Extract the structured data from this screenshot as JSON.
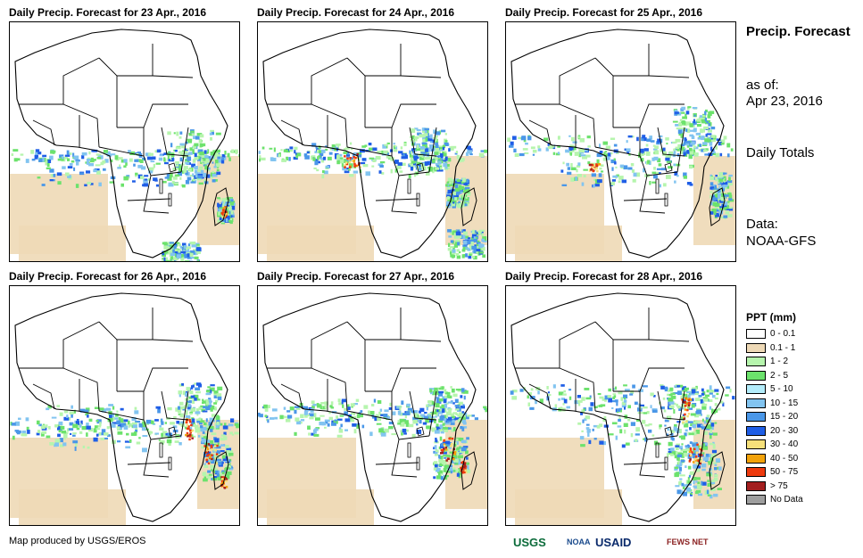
{
  "panels": [
    {
      "title": "Daily Precip. Forecast for 23 Apr., 2016"
    },
    {
      "title": "Daily Precip. Forecast for 24 Apr., 2016"
    },
    {
      "title": "Daily Precip. Forecast for 25 Apr., 2016"
    },
    {
      "title": "Daily Precip. Forecast for 26 Apr., 2016"
    },
    {
      "title": "Daily Precip. Forecast for 27 Apr., 2016"
    },
    {
      "title": "Daily Precip. Forecast for 28 Apr., 2016"
    }
  ],
  "sidebar": {
    "title": "Precip. Forecast",
    "asof_label": "as of:",
    "asof_date": "Apr 23, 2016",
    "totals": "Daily Totals",
    "data_label": "Data:",
    "data_source": "NOAA-GFS"
  },
  "legend": {
    "title": "PPT (mm)",
    "items": [
      {
        "label": "0 - 0.1",
        "color": "#ffffff"
      },
      {
        "label": "0.1 - 1",
        "color": "#eed9b6"
      },
      {
        "label": "1 - 2",
        "color": "#b6f5ad"
      },
      {
        "label": "2 - 5",
        "color": "#6ce26c"
      },
      {
        "label": "5 - 10",
        "color": "#b3ecfa"
      },
      {
        "label": "10 - 15",
        "color": "#82c4f0"
      },
      {
        "label": "15 - 20",
        "color": "#4a97e8"
      },
      {
        "label": "20 - 30",
        "color": "#1f5ee6"
      },
      {
        "label": "30 - 40",
        "color": "#f6e07a"
      },
      {
        "label": "40 - 50",
        "color": "#f2a20a"
      },
      {
        "label": "50 - 75",
        "color": "#ee3a0e"
      },
      {
        "label": "> 75",
        "color": "#a31f1f"
      },
      {
        "label": "No Data",
        "color": "#9e9e9e"
      }
    ]
  },
  "footer": {
    "credit": "Map produced by USGS/EROS",
    "logos": [
      {
        "name": "usgs",
        "text": "USGS",
        "color": "#0b6b3a"
      },
      {
        "name": "noaa",
        "text": "NOAA",
        "color": "#1a4a8c"
      },
      {
        "name": "usaid",
        "text": "USAID",
        "color": "#0a2a6b"
      },
      {
        "name": "fewsnet",
        "text": "FEWS NET",
        "color": "#8a1f1f"
      }
    ]
  }
}
